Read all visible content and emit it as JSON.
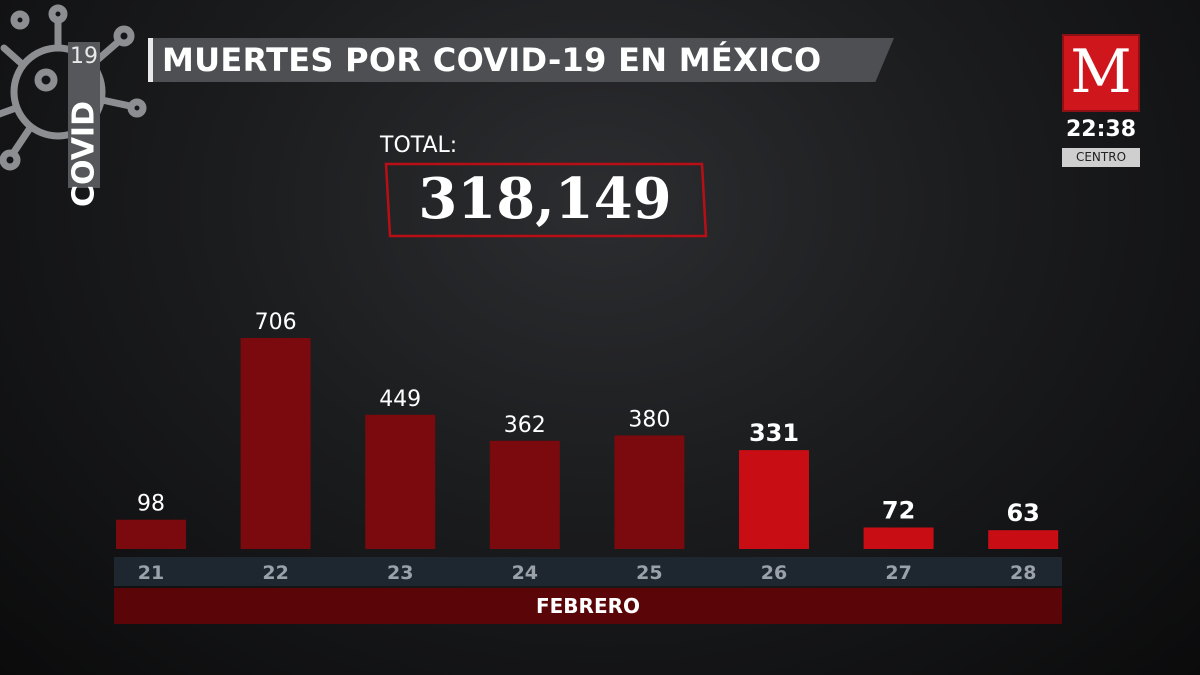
{
  "header": {
    "title": "MUERTES POR COVID-19 EN MÉXICO"
  },
  "covid_tag": {
    "word": "COVID",
    "number": "19"
  },
  "logo": {
    "letter": "M",
    "time": "22:38",
    "zone": "CENTRO"
  },
  "total": {
    "label": "TOTAL:",
    "value": "318,149"
  },
  "colors": {
    "bar": "#7a0a0d",
    "bar_highlight": "#c80d14",
    "axis_band": "#1e2730",
    "month_band": "#5a0608"
  },
  "chart_data": {
    "type": "bar",
    "categories": [
      "21",
      "22",
      "23",
      "24",
      "25",
      "26",
      "27",
      "28"
    ],
    "values": [
      98,
      706,
      449,
      362,
      380,
      331,
      72,
      63
    ],
    "highlighted": [
      "26",
      "27",
      "28"
    ],
    "xlabel": "FEBRERO",
    "ylabel": ""
  }
}
